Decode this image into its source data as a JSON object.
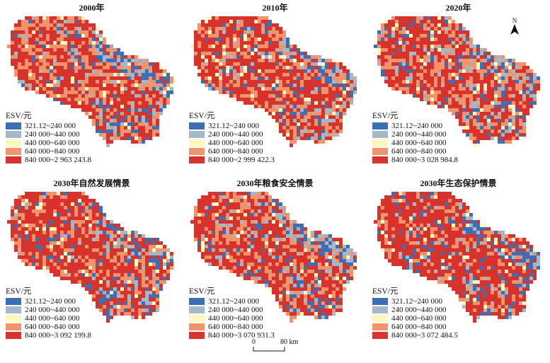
{
  "panels": [
    {
      "title": "2000年",
      "legend_title": "ESV/元",
      "max_label": "840 000~2 963 243.8",
      "red_share": 0.55,
      "blue_share": 0.1
    },
    {
      "title": "2010年",
      "legend_title": "ESV/元",
      "max_label": "840 000~2 999 422.3",
      "red_share": 0.62,
      "blue_share": 0.09
    },
    {
      "title": "2020年",
      "legend_title": "ESV/元",
      "max_label": "840 000~3 028 984.8",
      "red_share": 0.6,
      "blue_share": 0.11
    },
    {
      "title": "2030年自然发展情景",
      "legend_title": "ESV/元",
      "max_label": "840 000~3 092 199.8",
      "red_share": 0.72,
      "blue_share": 0.11
    },
    {
      "title": "2030年粮食安全情景",
      "legend_title": "ESV/元",
      "max_label": "840 000~3 070 931.3",
      "red_share": 0.66,
      "blue_share": 0.14
    },
    {
      "title": "2030年生态保护情景",
      "legend_title": "ESV/元",
      "max_label": "840 000~3 072 484.5",
      "red_share": 0.76,
      "blue_share": 0.11
    }
  ],
  "legend_classes": [
    {
      "label": "321.12~240 000",
      "color": "#3e6fb5"
    },
    {
      "label": "240 000~440 000",
      "color": "#a3b8c9"
    },
    {
      "label": "440 000~640 000",
      "color": "#fbf7bf"
    },
    {
      "label": "640 000~840 000",
      "color": "#f2946b"
    }
  ],
  "top_class_color": "#d7322b",
  "north_label": "N",
  "scale": {
    "zero": "0",
    "end": "80 km"
  }
}
